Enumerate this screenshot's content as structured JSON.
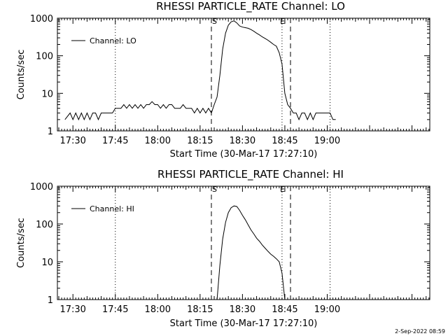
{
  "footer_timestamp": "2-Sep-2022 08:59",
  "colors": {
    "background": "#ffffff",
    "ink": "#000000"
  },
  "chart_data": [
    {
      "type": "line",
      "title": "RHESSI PARTICLE_RATE Channel: LO",
      "xlabel": "Start Time (30-Mar-17 17:27:10)",
      "ylabel": "Counts/sec",
      "yscale": "log",
      "ylim": [
        1,
        1000
      ],
      "xlim_minutes": [
        17.4,
        19.6
      ],
      "x_ticks": [
        "17:30",
        "17:45",
        "18:00",
        "18:15",
        "18:30",
        "18:45",
        "19:00"
      ],
      "y_ticks": [
        "1",
        "10",
        "100",
        "1000"
      ],
      "legend": {
        "label": "Channel: LO",
        "position": "top-left"
      },
      "markers": [
        {
          "label": "S",
          "time": "18:19",
          "style": "dashed"
        },
        {
          "label": "E",
          "time": "18:47",
          "style": "dashed"
        }
      ],
      "dotted_lines": [
        "17:45",
        "18:44",
        "19:01"
      ],
      "series": [
        {
          "name": "Channel: LO",
          "points": [
            [
              "17:27:10",
              2
            ],
            [
              "17:29",
              3
            ],
            [
              "17:30",
              2
            ],
            [
              "17:31",
              3
            ],
            [
              "17:32",
              2
            ],
            [
              "17:33",
              3
            ],
            [
              "17:34",
              2
            ],
            [
              "17:35",
              3
            ],
            [
              "17:36",
              2
            ],
            [
              "17:37",
              3
            ],
            [
              "17:38",
              3
            ],
            [
              "17:39",
              2
            ],
            [
              "17:40",
              3
            ],
            [
              "17:44",
              3
            ],
            [
              "17:45",
              4
            ],
            [
              "17:47",
              4
            ],
            [
              "17:48",
              5
            ],
            [
              "17:49",
              4
            ],
            [
              "17:50",
              5
            ],
            [
              "17:51",
              4
            ],
            [
              "17:52",
              5
            ],
            [
              "17:53",
              4
            ],
            [
              "17:54",
              5
            ],
            [
              "17:55",
              4
            ],
            [
              "17:56",
              5
            ],
            [
              "17:57",
              5
            ],
            [
              "17:58",
              6
            ],
            [
              "17:59",
              5
            ],
            [
              "18:00",
              5
            ],
            [
              "18:01",
              4
            ],
            [
              "18:02",
              5
            ],
            [
              "18:03",
              4
            ],
            [
              "18:04",
              5
            ],
            [
              "18:05",
              5
            ],
            [
              "18:06",
              4
            ],
            [
              "18:08",
              4
            ],
            [
              "18:09",
              5
            ],
            [
              "18:10",
              4
            ],
            [
              "18:12",
              4
            ],
            [
              "18:13",
              3
            ],
            [
              "18:14",
              4
            ],
            [
              "18:15",
              3
            ],
            [
              "18:16",
              4
            ],
            [
              "18:17",
              3
            ],
            [
              "18:18",
              4
            ],
            [
              "18:19",
              3
            ],
            [
              "18:20",
              5
            ],
            [
              "18:21",
              8
            ],
            [
              "18:22",
              30
            ],
            [
              "18:23",
              150
            ],
            [
              "18:24",
              400
            ],
            [
              "18:25",
              650
            ],
            [
              "18:26",
              800
            ],
            [
              "18:27",
              850
            ],
            [
              "18:28",
              750
            ],
            [
              "18:29",
              620
            ],
            [
              "18:30",
              580
            ],
            [
              "18:31",
              560
            ],
            [
              "18:32",
              540
            ],
            [
              "18:33",
              500
            ],
            [
              "18:34",
              450
            ],
            [
              "18:35",
              400
            ],
            [
              "18:36",
              360
            ],
            [
              "18:37",
              320
            ],
            [
              "18:38",
              290
            ],
            [
              "18:39",
              260
            ],
            [
              "18:40",
              230
            ],
            [
              "18:41",
              200
            ],
            [
              "18:42",
              180
            ],
            [
              "18:43",
              120
            ],
            [
              "18:44",
              60
            ],
            [
              "18:45",
              10
            ],
            [
              "18:46",
              5
            ],
            [
              "18:47",
              4
            ],
            [
              "18:48",
              3
            ],
            [
              "18:49",
              3
            ],
            [
              "18:50",
              2
            ],
            [
              "18:51",
              3
            ],
            [
              "18:52",
              3
            ],
            [
              "18:53",
              2
            ],
            [
              "18:54",
              3
            ],
            [
              "18:55",
              2
            ],
            [
              "18:56",
              3
            ],
            [
              "19:01",
              3
            ],
            [
              "19:02",
              2
            ],
            [
              "19:03",
              2
            ]
          ]
        }
      ]
    },
    {
      "type": "line",
      "title": "RHESSI PARTICLE_RATE Channel: HI",
      "xlabel": "Start Time (30-Mar-17 17:27:10)",
      "ylabel": "Counts/sec",
      "yscale": "log",
      "ylim": [
        1,
        1000
      ],
      "xlim_minutes": [
        17.4,
        19.6
      ],
      "x_ticks": [
        "17:30",
        "17:45",
        "18:00",
        "18:15",
        "18:30",
        "18:45",
        "19:00"
      ],
      "y_ticks": [
        "1",
        "10",
        "100",
        "1000"
      ],
      "legend": {
        "label": "Channel: HI",
        "position": "top-left"
      },
      "markers": [
        {
          "label": "S",
          "time": "18:19",
          "style": "dashed"
        },
        {
          "label": "E",
          "time": "18:47",
          "style": "dashed"
        }
      ],
      "dotted_lines": [
        "17:45",
        "18:44",
        "19:01"
      ],
      "series": [
        {
          "name": "Channel: HI",
          "points": [
            [
              "18:21",
              1
            ],
            [
              "18:22",
              8
            ],
            [
              "18:23",
              40
            ],
            [
              "18:24",
              110
            ],
            [
              "18:25",
              200
            ],
            [
              "18:26",
              270
            ],
            [
              "18:27",
              300
            ],
            [
              "18:28",
              290
            ],
            [
              "18:29",
              230
            ],
            [
              "18:30",
              170
            ],
            [
              "18:31",
              130
            ],
            [
              "18:32",
              95
            ],
            [
              "18:33",
              70
            ],
            [
              "18:34",
              55
            ],
            [
              "18:35",
              42
            ],
            [
              "18:36",
              35
            ],
            [
              "18:37",
              28
            ],
            [
              "18:38",
              23
            ],
            [
              "18:39",
              19
            ],
            [
              "18:40",
              16
            ],
            [
              "18:41",
              14
            ],
            [
              "18:42",
              12
            ],
            [
              "18:43",
              10
            ],
            [
              "18:44",
              5
            ],
            [
              "18:45",
              1
            ]
          ]
        }
      ]
    }
  ]
}
